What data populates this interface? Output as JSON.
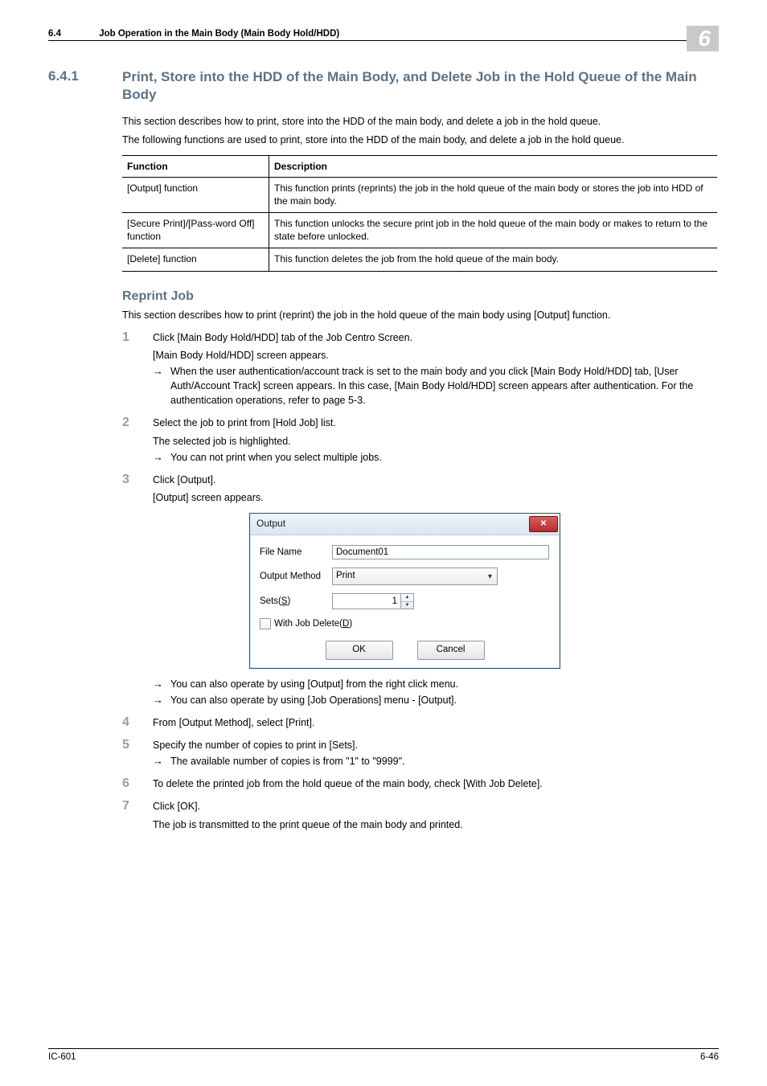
{
  "header": {
    "section_num": "6.4",
    "section_title": "Job Operation in the Main Body (Main Body Hold/HDD)",
    "chapter_num": "6"
  },
  "h641": {
    "num": "6.4.1",
    "title": "Print, Store into the HDD of the Main Body, and Delete Job in the Hold Queue of the Main Body"
  },
  "intro": {
    "p1": "This section describes how to print, store into the HDD of the main body, and delete a job in the hold queue.",
    "p2": "The following functions are used to print, store into the HDD of the main body, and delete a job in the hold queue."
  },
  "functbl": {
    "head_function": "Function",
    "head_description": "Description",
    "rows": [
      {
        "fn": "[Output] function",
        "desc": "This function prints (reprints) the job in the hold queue of the main body or stores the job into HDD of the main body."
      },
      {
        "fn": "[Secure Print]/[Pass-word Off] function",
        "desc": "This function unlocks the secure print job in the hold queue of the main body or makes to return to the state before unlocked."
      },
      {
        "fn": "[Delete] function",
        "desc": "This function deletes the job from the hold queue of the main body."
      }
    ]
  },
  "reprint": {
    "heading": "Reprint Job",
    "intro": "This section describes how to print (reprint) the job in the hold queue of the main body using [Output] function."
  },
  "steps": {
    "s1": {
      "num": "1",
      "text": "Click [Main Body Hold/HDD] tab of the Job Centro Screen.",
      "sub1": "[Main Body Hold/HDD] screen appears.",
      "arrow1": "When the user authentication/account track is set to the main body and you click [Main Body Hold/HDD] tab, [User Auth/Account Track] screen appears. In this case, [Main Body Hold/HDD] screen appears after authentication. For the authentication operations, refer to page 5-3."
    },
    "s2": {
      "num": "2",
      "text": "Select the job to print from [Hold Job] list.",
      "sub1": "The selected job is highlighted.",
      "arrow1": "You can not print when you select multiple jobs."
    },
    "s3": {
      "num": "3",
      "text": "Click [Output].",
      "sub1": "[Output] screen appears.",
      "arrow1": "You can also operate by using [Output] from the right click menu.",
      "arrow2": "You can also operate by using [Job Operations] menu - [Output]."
    },
    "s4": {
      "num": "4",
      "text": "From [Output Method], select [Print]."
    },
    "s5": {
      "num": "5",
      "text": "Specify the number of copies to print in [Sets].",
      "arrow1": "The available number of copies is from \"1\" to \"9999\"."
    },
    "s6": {
      "num": "6",
      "text": "To delete the printed job from the hold queue of the main body, check [With Job Delete]."
    },
    "s7": {
      "num": "7",
      "text": "Click [OK].",
      "sub1": "The job is transmitted to the print queue of the main body and printed."
    }
  },
  "dialog": {
    "title": "Output",
    "file_name_label": "File Name",
    "file_name_value": "Document01",
    "output_method_label": "Output Method",
    "output_method_value": "Print",
    "sets_label_prefix": "Sets(",
    "sets_key": "S",
    "sets_label_suffix": ")",
    "sets_value": "1",
    "with_job_delete_prefix": "With Job Delete(",
    "with_job_delete_key": "D",
    "with_job_delete_suffix": ")",
    "ok": "OK",
    "cancel": "Cancel"
  },
  "footer": {
    "left": "IC-601",
    "right": "6-46"
  }
}
